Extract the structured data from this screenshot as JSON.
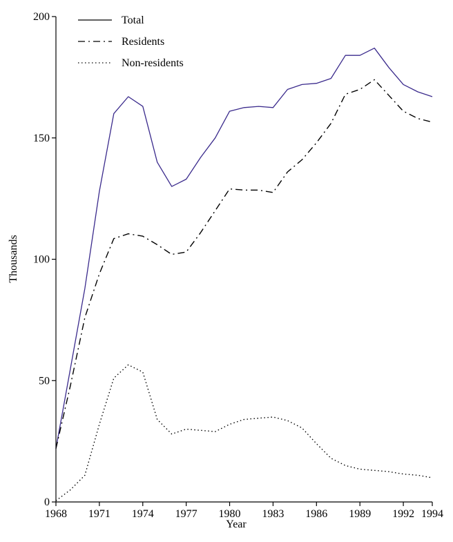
{
  "chart_data": {
    "type": "line",
    "xlabel": "Year",
    "ylabel": "Thousands",
    "xlim": [
      1968,
      1994
    ],
    "ylim": [
      0,
      200
    ],
    "xticks": [
      "1968",
      "1971",
      "1974",
      "1977",
      "1980",
      "1983",
      "1986",
      "1989",
      "1992",
      "1994"
    ],
    "yticks": [
      "0",
      "50",
      "100",
      "150",
      "200"
    ],
    "grid": false,
    "legend_position": "top-left",
    "x": [
      1968,
      1969,
      1970,
      1971,
      1972,
      1973,
      1974,
      1975,
      1976,
      1977,
      1978,
      1979,
      1980,
      1981,
      1982,
      1983,
      1984,
      1985,
      1986,
      1987,
      1988,
      1989,
      1990,
      1991,
      1992,
      1993,
      1994
    ],
    "series": [
      {
        "name": "Total",
        "style": "solid",
        "color": "#3a2a8c",
        "values": [
          22,
          55,
          88,
          128,
          160,
          167,
          163,
          140,
          130,
          133,
          142,
          150,
          161,
          162.5,
          163,
          162.5,
          170,
          172,
          172.5,
          174.5,
          184,
          184,
          187,
          179,
          172,
          169,
          167
        ]
      },
      {
        "name": "Residents",
        "style": "dashdot",
        "color": "#000000",
        "values": [
          22,
          48,
          76,
          94,
          108.5,
          110.5,
          109.5,
          106,
          102,
          103,
          111,
          120,
          129,
          128.5,
          128.5,
          127.5,
          136,
          141,
          148,
          156,
          168,
          170,
          174,
          167.5,
          161,
          158,
          156.5
        ]
      },
      {
        "name": "Non-residents",
        "style": "dotted",
        "color": "#000000",
        "values": [
          0.5,
          5,
          11,
          32,
          51,
          56.5,
          53.5,
          34,
          28,
          30,
          29.5,
          29,
          32,
          34,
          34.5,
          35,
          33.5,
          30.5,
          24,
          18,
          15,
          13.5,
          13,
          12.5,
          11.5,
          11,
          10
        ]
      }
    ]
  }
}
